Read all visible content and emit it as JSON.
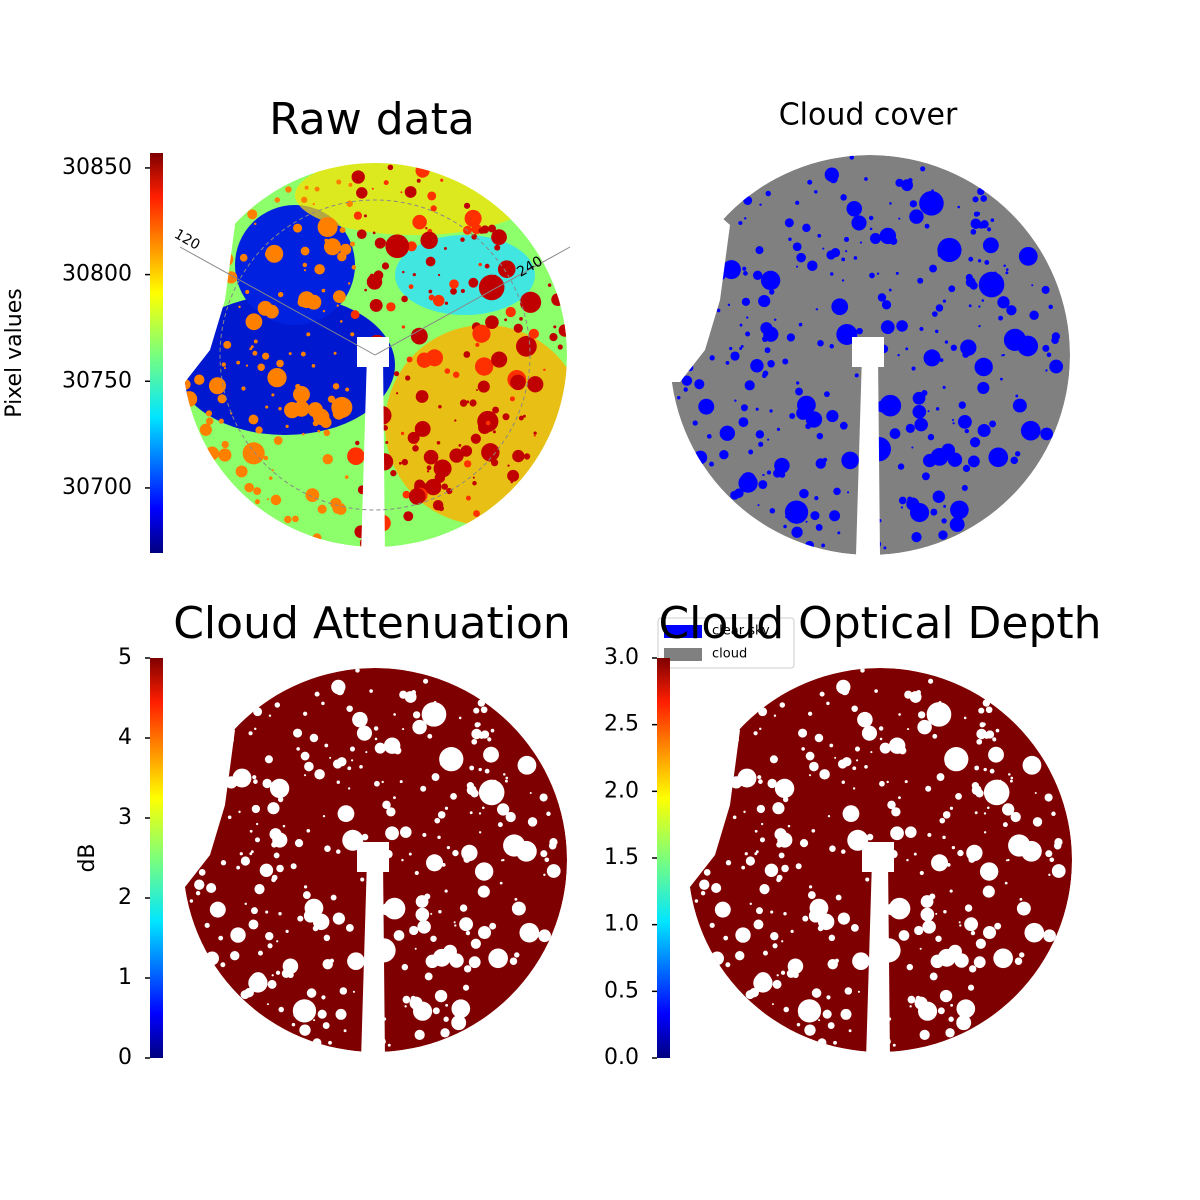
{
  "chart_data": [
    {
      "type": "image",
      "title": "Raw data",
      "ylabel": "Pixel values",
      "colormap": "jet",
      "ylim": [
        30669.5,
        30857
      ],
      "yticks": [
        30700,
        30750,
        30800,
        30850
      ],
      "annotations": [
        "120",
        "240"
      ]
    },
    {
      "type": "image",
      "title": "Cloud cover",
      "series": [
        {
          "name": "clear sky",
          "color": "#0000ff"
        },
        {
          "name": "cloud",
          "color": "#808080"
        }
      ]
    },
    {
      "type": "image",
      "title": "Cloud Attenuation",
      "ylabel": "dB",
      "colormap": "jet",
      "ylim": [
        0,
        5
      ],
      "yticks": [
        0,
        1,
        2,
        3,
        4,
        5
      ]
    },
    {
      "type": "image",
      "title": "Cloud Optical Depth",
      "colormap": "jet",
      "ylim": [
        0,
        3
      ],
      "yticks": [
        {
          "value": 0,
          "label": "0.0"
        },
        {
          "value": 0.5,
          "label": "0.5"
        },
        {
          "value": 1,
          "label": "1.0"
        },
        {
          "value": 1.5,
          "label": "1.5"
        },
        {
          "value": 2,
          "label": "2.0"
        },
        {
          "value": 2.5,
          "label": "2.5"
        },
        {
          "value": 3,
          "label": "3.0"
        }
      ]
    }
  ]
}
